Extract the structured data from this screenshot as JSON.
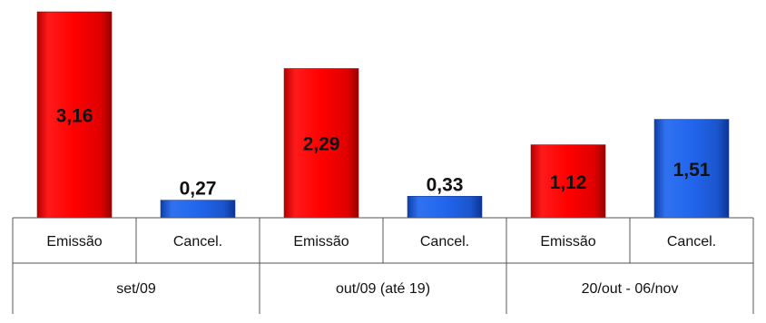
{
  "chart_data": {
    "type": "bar",
    "groups": [
      "set/09",
      "out/09 (até 19)",
      "20/out - 06/nov"
    ],
    "categories": [
      "Emissão",
      "Cancel.",
      "Emissão",
      "Cancel.",
      "Emissão",
      "Cancel."
    ],
    "bars": [
      {
        "group": "set/09",
        "category": "Emissão",
        "value": 3.16,
        "label": "3,16",
        "color": "#e60000"
      },
      {
        "group": "set/09",
        "category": "Cancel.",
        "value": 0.27,
        "label": "0,27",
        "color": "#1e5fd8"
      },
      {
        "group": "out/09 (até 19)",
        "category": "Emissão",
        "value": 2.29,
        "label": "2,29",
        "color": "#e60000"
      },
      {
        "group": "out/09 (até 19)",
        "category": "Cancel.",
        "value": 0.33,
        "label": "0,33",
        "color": "#1e5fd8"
      },
      {
        "group": "20/out - 06/nov",
        "category": "Emissão",
        "value": 1.12,
        "label": "1,12",
        "color": "#e60000"
      },
      {
        "group": "20/out - 06/nov",
        "category": "Cancel.",
        "value": 1.51,
        "label": "1,51",
        "color": "#1e5fd8"
      }
    ],
    "ylim": [
      0,
      3.16
    ],
    "grid": false,
    "legend": "none"
  }
}
